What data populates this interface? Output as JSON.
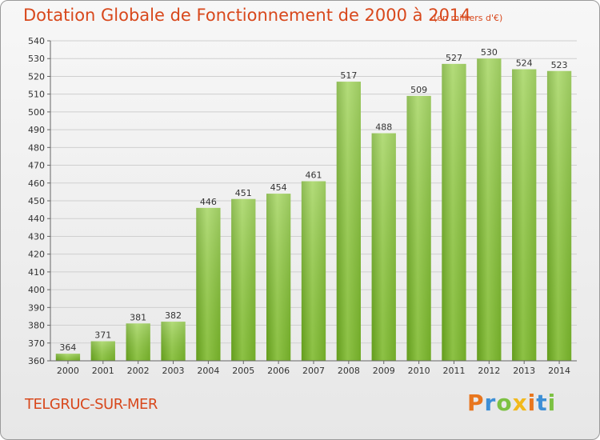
{
  "chart_data": {
    "type": "bar",
    "title": "Dotation Globale de Fonctionnement de 2000 à 2014",
    "subtitle": "(en milliers d'€)",
    "categories": [
      "2000",
      "2001",
      "2002",
      "2003",
      "2004",
      "2005",
      "2006",
      "2007",
      "2008",
      "2009",
      "2010",
      "2011",
      "2012",
      "2013",
      "2014"
    ],
    "values": [
      364,
      371,
      381,
      382,
      446,
      451,
      454,
      461,
      517,
      488,
      509,
      527,
      530,
      524,
      523
    ],
    "ylim": [
      360,
      540
    ],
    "ytick_step": 10,
    "xlabel": "",
    "ylabel": "",
    "grid": true,
    "bar_color": "#8cc63f"
  },
  "footer": {
    "city": "TELGRUC-SUR-MER",
    "brand": "Proxiti",
    "brand_colors": [
      "#e8761e",
      "#3d8fd6",
      "#7cc142",
      "#f2b91c",
      "#e8761e",
      "#3d8fd6",
      "#7cc142"
    ]
  }
}
